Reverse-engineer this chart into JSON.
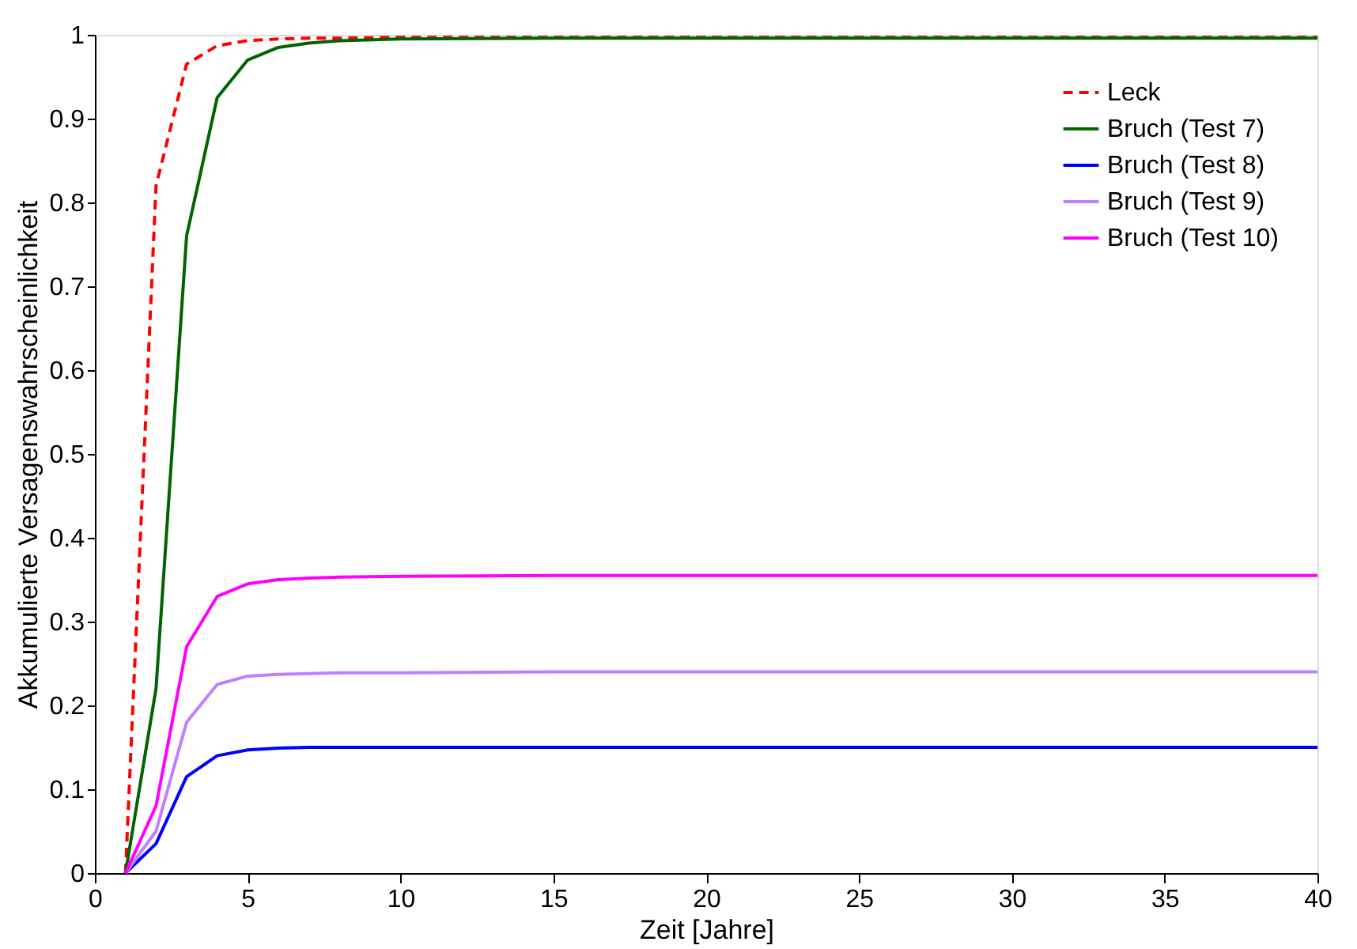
{
  "chart_data": {
    "type": "line",
    "xlabel": "Zeit [Jahre]",
    "ylabel": "Akkumulierte Versagenswahrscheinlichkeit",
    "x": [
      1,
      2,
      3,
      4,
      5,
      6,
      7,
      8,
      10,
      15,
      20,
      30,
      40
    ],
    "xlim": [
      0,
      40
    ],
    "xticks": [
      0,
      5,
      10,
      15,
      20,
      25,
      30,
      35,
      40
    ],
    "ylim": [
      0,
      1
    ],
    "yticks": [
      0,
      0.1,
      0.2,
      0.3,
      0.4,
      0.5,
      0.6,
      0.7,
      0.8,
      0.9,
      1
    ],
    "grid": false,
    "legend": "top right",
    "marker": "none",
    "series": [
      {
        "name": "Leck",
        "color": "#ff0000",
        "line_style": "dashed",
        "values": [
          0,
          0.82,
          0.965,
          0.987,
          0.993,
          0.995,
          0.996,
          0.996,
          0.997,
          0.997,
          0.997,
          0.997,
          0.997
        ]
      },
      {
        "name": "Bruch (Test 7)",
        "color": "#006400",
        "line_style": "solid",
        "values": [
          0,
          0.22,
          0.76,
          0.925,
          0.97,
          0.985,
          0.99,
          0.993,
          0.995,
          0.996,
          0.996,
          0.996,
          0.996
        ]
      },
      {
        "name": "Bruch (Test 8)",
        "color": "#0000ff",
        "line_style": "solid",
        "values": [
          0,
          0.035,
          0.115,
          0.14,
          0.147,
          0.149,
          0.15,
          0.15,
          0.15,
          0.15,
          0.15,
          0.15,
          0.15
        ]
      },
      {
        "name": "Bruch (Test 9)",
        "color": "#bf80ff",
        "line_style": "solid",
        "values": [
          0,
          0.05,
          0.18,
          0.225,
          0.235,
          0.237,
          0.238,
          0.239,
          0.239,
          0.24,
          0.24,
          0.24,
          0.24
        ]
      },
      {
        "name": "Bruch (Test 10)",
        "color": "#ff00ff",
        "line_style": "solid",
        "values": [
          0,
          0.08,
          0.27,
          0.33,
          0.345,
          0.35,
          0.352,
          0.353,
          0.354,
          0.355,
          0.355,
          0.355,
          0.355
        ]
      }
    ]
  }
}
